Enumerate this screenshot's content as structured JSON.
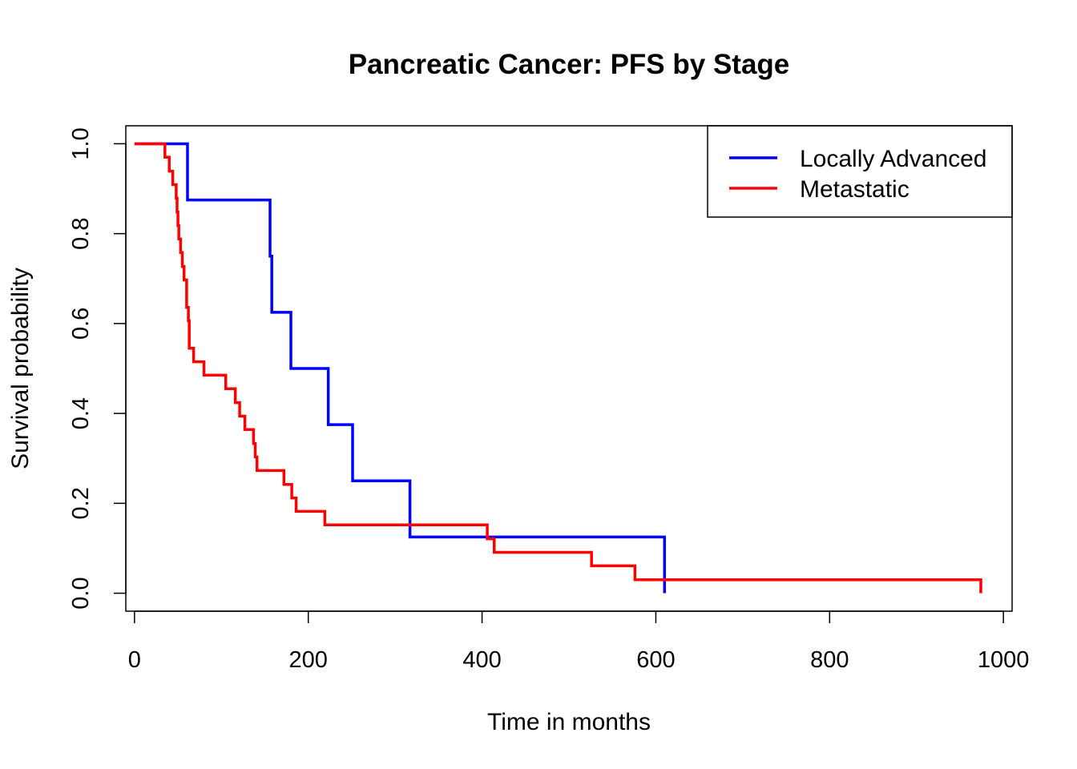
{
  "chart_data": {
    "type": "line",
    "title": "Pancreatic Cancer: PFS by Stage",
    "xlabel": "Time in months",
    "ylabel": "Survival probability",
    "xlim": [
      -10,
      1010
    ],
    "ylim": [
      -0.04,
      1.04
    ],
    "x_ticks": [
      0,
      200,
      400,
      600,
      800,
      1000
    ],
    "y_ticks": [
      0.0,
      0.2,
      0.4,
      0.6,
      0.8,
      1.0
    ],
    "x_tick_labels": [
      "0",
      "200",
      "400",
      "600",
      "800",
      "1000"
    ],
    "y_tick_labels": [
      "0.0",
      "0.2",
      "0.4",
      "0.6",
      "0.8",
      "1.0"
    ],
    "grid": false,
    "legend": {
      "position": "top-right"
    },
    "series": [
      {
        "name": "Locally Advanced",
        "color": "#0000ff",
        "step": true,
        "x": [
          0,
          61,
          156,
          158,
          180,
          223,
          251,
          317,
          610
        ],
        "y": [
          1.0,
          0.875,
          0.75,
          0.625,
          0.5,
          0.375,
          0.25,
          0.125,
          0.0
        ]
      },
      {
        "name": "Metastatic",
        "color": "#ff0000",
        "step": true,
        "x": [
          0,
          35,
          40,
          44,
          48,
          49,
          50,
          51,
          53,
          55,
          57,
          60,
          62,
          63,
          68,
          80,
          105,
          116,
          121,
          127,
          137,
          139,
          141,
          172,
          181,
          186,
          219,
          406,
          414,
          526,
          576,
          974
        ],
        "y": [
          1.0,
          0.97,
          0.939,
          0.909,
          0.879,
          0.848,
          0.818,
          0.788,
          0.758,
          0.727,
          0.697,
          0.636,
          0.606,
          0.545,
          0.515,
          0.485,
          0.455,
          0.424,
          0.394,
          0.364,
          0.333,
          0.303,
          0.273,
          0.242,
          0.212,
          0.182,
          0.152,
          0.121,
          0.091,
          0.061,
          0.03,
          0.0
        ]
      }
    ]
  }
}
